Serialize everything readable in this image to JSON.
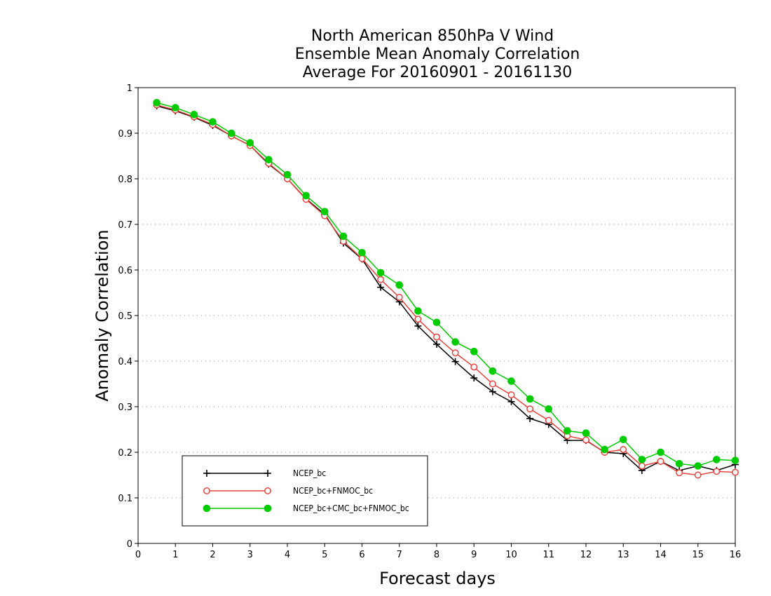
{
  "chart_data": {
    "type": "line",
    "title": [
      "North American 850hPa V Wind",
      "Ensemble Mean Anomaly Correlation",
      "Average For 20160901 - 20161130"
    ],
    "xlabel": "Forecast days",
    "ylabel": "Anomaly Correlation",
    "xlim": [
      0,
      16
    ],
    "ylim": [
      0,
      1
    ],
    "x_ticks": [
      0,
      1,
      2,
      3,
      4,
      5,
      6,
      7,
      8,
      9,
      10,
      11,
      12,
      13,
      14,
      15,
      16
    ],
    "y_ticks": [
      0,
      0.1,
      0.2,
      0.3,
      0.4,
      0.5,
      0.6,
      0.7,
      0.8,
      0.9,
      1
    ],
    "y_tick_labels": [
      "0",
      "0.1",
      "0.2",
      "0.3",
      "0.4",
      "0.5",
      "0.6",
      "0.7",
      "0.8",
      "0.9",
      "1"
    ],
    "grid": "horizontal dotted",
    "legend_position": "bottom-left",
    "x": [
      0.5,
      1,
      1.5,
      2,
      2.5,
      3,
      3.5,
      4,
      4.5,
      5,
      5.5,
      6,
      6.5,
      7,
      7.5,
      8,
      8.5,
      9,
      9.5,
      10,
      10.5,
      11,
      11.5,
      12,
      12.5,
      13,
      13.5,
      14,
      14.5,
      15,
      15.5,
      16
    ],
    "series": [
      {
        "name": "NCEP_bc",
        "color": "#000000",
        "marker": "plus",
        "values": [
          0.96,
          0.949,
          0.935,
          0.917,
          0.894,
          0.873,
          0.832,
          0.8,
          0.756,
          0.722,
          0.659,
          0.624,
          0.562,
          0.53,
          0.477,
          0.437,
          0.399,
          0.363,
          0.333,
          0.311,
          0.274,
          0.261,
          0.226,
          0.226,
          0.2,
          0.197,
          0.16,
          0.18,
          0.16,
          0.17,
          0.16,
          0.173
        ]
      },
      {
        "name": "NCEP_bc+FNMOC_bc",
        "color": "#e8433c",
        "marker": "open-circle",
        "values": [
          0.962,
          0.951,
          0.936,
          0.919,
          0.894,
          0.873,
          0.834,
          0.8,
          0.755,
          0.719,
          0.663,
          0.625,
          0.579,
          0.54,
          0.492,
          0.453,
          0.418,
          0.387,
          0.35,
          0.326,
          0.295,
          0.27,
          0.236,
          0.227,
          0.2,
          0.206,
          0.17,
          0.18,
          0.155,
          0.15,
          0.158,
          0.156
        ]
      },
      {
        "name": "NCEP_bc+CMC_bc+FNMOC_bc",
        "color": "#00cc00",
        "marker": "filled-circle",
        "values": [
          0.967,
          0.956,
          0.941,
          0.925,
          0.9,
          0.879,
          0.842,
          0.809,
          0.763,
          0.728,
          0.674,
          0.638,
          0.594,
          0.567,
          0.51,
          0.485,
          0.442,
          0.421,
          0.378,
          0.356,
          0.317,
          0.295,
          0.247,
          0.242,
          0.206,
          0.228,
          0.184,
          0.2,
          0.175,
          0.17,
          0.184,
          0.182
        ]
      }
    ]
  }
}
